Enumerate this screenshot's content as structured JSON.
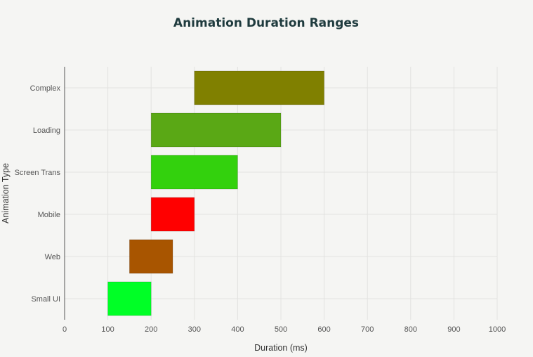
{
  "chart_data": {
    "type": "bar",
    "orientation": "horizontal",
    "title": "Animation Duration Ranges",
    "xlabel": "Duration (ms)",
    "ylabel": "Animation Type",
    "xlim": [
      0,
      1000
    ],
    "xticks": [
      0,
      100,
      200,
      300,
      400,
      500,
      600,
      700,
      800,
      900,
      1000
    ],
    "grid": true,
    "categories": [
      "Small UI",
      "Web",
      "Mobile",
      "Screen Trans",
      "Loading",
      "Complex"
    ],
    "ranges": [
      {
        "category": "Small UI",
        "start": 100,
        "end": 200,
        "color": "#00ff26"
      },
      {
        "category": "Web",
        "start": 150,
        "end": 250,
        "color": "#a85500"
      },
      {
        "category": "Mobile",
        "start": 200,
        "end": 300,
        "color": "#ff0000"
      },
      {
        "category": "Screen Trans",
        "start": 200,
        "end": 400,
        "color": "#33d10d"
      },
      {
        "category": "Loading",
        "start": 200,
        "end": 500,
        "color": "#5aa815"
      },
      {
        "category": "Complex",
        "start": 300,
        "end": 600,
        "color": "#808000"
      }
    ]
  }
}
